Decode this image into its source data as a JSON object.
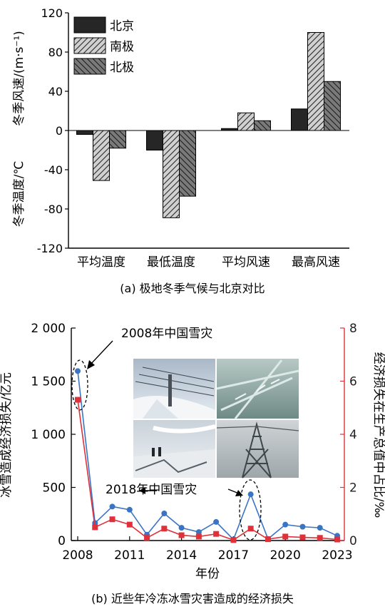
{
  "chart_data": [
    {
      "type": "bar",
      "caption": "(a) 极地冬季气候与北京对比",
      "categories": [
        "平均温度",
        "最低温度",
        "平均风速",
        "最高风速"
      ],
      "series": [
        {
          "name": "北京",
          "values": [
            -4,
            -20,
            2,
            22
          ],
          "color": "#262626"
        },
        {
          "name": "南极",
          "values": [
            -51,
            -89,
            18,
            100
          ],
          "color": "#d0d0d0",
          "pattern": "forward-hatch"
        },
        {
          "name": "北极",
          "values": [
            -18,
            -67,
            10,
            50
          ],
          "color": "#7a7a7a",
          "pattern": "backward-hatch"
        }
      ],
      "ylabel_upper": "冬季风速/(m·s⁻¹)",
      "ylabel_lower": "冬季温度/℃",
      "ylim": [
        -120,
        120
      ],
      "yticks": [
        "120",
        "80",
        "40",
        "0",
        "-40",
        "-80",
        "-120"
      ],
      "legend_position": "top-left",
      "grid": false
    },
    {
      "type": "line",
      "caption": "(b) 近些年冷冻冰雪灾害造成的经济损失",
      "xlabel": "年份",
      "ylabel_left": "冰雪造成经济损失/亿元",
      "ylabel_right": "经济损失在生产总值中占比/‰",
      "x": [
        2008,
        2009,
        2010,
        2011,
        2012,
        2013,
        2014,
        2015,
        2016,
        2017,
        2018,
        2019,
        2020,
        2021,
        2022,
        2023
      ],
      "xticks": [
        "2008",
        "2011",
        "2014",
        "2017",
        "2020",
        "2023"
      ],
      "yticks_left": [
        "0",
        "500",
        "1 000",
        "1 500",
        "2 000"
      ],
      "yticks_right": [
        "0",
        "2",
        "4",
        "6",
        "8"
      ],
      "ylim_left": [
        0,
        2000
      ],
      "ylim_right": [
        0,
        8
      ],
      "series": [
        {
          "axis": "left",
          "values": [
            1595,
            165,
            320,
            290,
            55,
            255,
            120,
            80,
            175,
            10,
            435,
            15,
            150,
            130,
            120,
            45
          ],
          "color": "#3a74c4",
          "marker": "circle"
        },
        {
          "axis": "right",
          "values": [
            5.3,
            0.5,
            0.8,
            0.6,
            0.1,
            0.45,
            0.2,
            0.15,
            0.25,
            0.02,
            0.45,
            0.05,
            0.15,
            0.12,
            0.1,
            0.04
          ],
          "color": "#e0303a",
          "marker": "square"
        }
      ],
      "annotations": [
        "2008年中国雪灾",
        "2018年中国雪灾"
      ],
      "inset_photos": [
        "snow-covered-power-lines",
        "ice-coated-branches",
        "workers-under-iced-lines",
        "iced-transmission-tower"
      ]
    }
  ]
}
